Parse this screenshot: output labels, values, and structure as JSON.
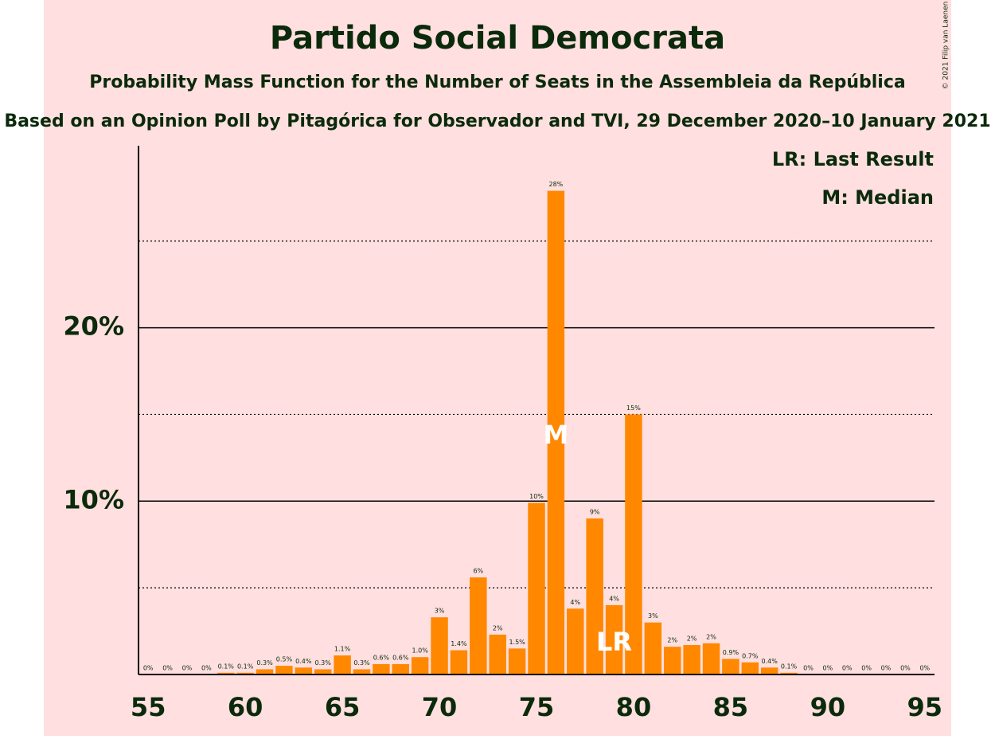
{
  "chart_data": {
    "type": "bar",
    "title": "Partido Social Democrata",
    "subtitle": "Probability Mass Function for the Number of Seats in the Assembleia da República",
    "subtitle2": "Based on an Opinion Poll by Pitagórica for Observador and TVI, 29 December 2020–10 January 2021",
    "copyright": "© 2021 Filip van Laenen",
    "legend": [
      "LR: Last Result",
      "M: Median"
    ],
    "annotations": [
      {
        "label": "M",
        "x": 76
      },
      {
        "label": "LR",
        "x": 79
      }
    ],
    "x": [
      55,
      56,
      57,
      58,
      59,
      60,
      61,
      62,
      63,
      64,
      65,
      66,
      67,
      68,
      69,
      70,
      71,
      72,
      73,
      74,
      75,
      76,
      77,
      78,
      79,
      80,
      81,
      82,
      83,
      84,
      85,
      86,
      87,
      88,
      89,
      90,
      91,
      92,
      93,
      94,
      95
    ],
    "values": [
      0,
      0,
      0,
      0,
      0.1,
      0.1,
      0.3,
      0.5,
      0.4,
      0.3,
      1.1,
      0.3,
      0.6,
      0.6,
      1.0,
      3.3,
      1.4,
      5.6,
      2.3,
      1.5,
      9.9,
      27.9,
      3.8,
      9.0,
      4.0,
      15.0,
      3.0,
      1.6,
      1.7,
      1.8,
      0.9,
      0.7,
      0.4,
      0.1,
      0,
      0,
      0,
      0,
      0,
      0,
      0
    ],
    "value_labels": [
      "0%",
      "0%",
      "0%",
      "0%",
      "0.1%",
      "0.1%",
      "0.3%",
      "0.5%",
      "0.4%",
      "0.3%",
      "1.1%",
      "0.3%",
      "0.6%",
      "0.6%",
      "1.0%",
      "3%",
      "1.4%",
      "6%",
      "2%",
      "1.5%",
      "10%",
      "28%",
      "4%",
      "9%",
      "4%",
      "15%",
      "3%",
      "2%",
      "2%",
      "2%",
      "0.9%",
      "0.7%",
      "0.4%",
      "0.1%",
      "0%",
      "0%",
      "0%",
      "0%",
      "0%",
      "0%",
      "0%"
    ],
    "color": "#ff8800",
    "xlim": [
      54.5,
      95.5
    ],
    "xticks": [
      55,
      60,
      65,
      70,
      75,
      80,
      85,
      90,
      95
    ],
    "ylim": [
      0,
      30.5
    ],
    "yticks": [
      {
        "value": 10,
        "label": "10%"
      },
      {
        "value": 20,
        "label": "20%"
      }
    ],
    "minor_yticks": [
      5,
      15,
      25
    ],
    "grid": true
  }
}
